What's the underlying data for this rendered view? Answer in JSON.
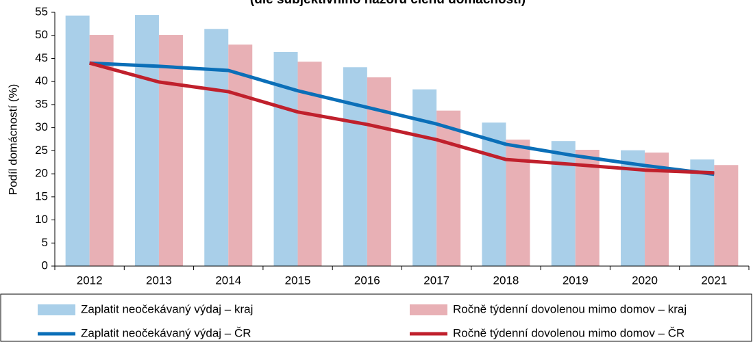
{
  "chart_data": {
    "type": "bar",
    "title": "(dle subjektivního názoru členů domácností)",
    "y_label": "Podíl domácností (%)",
    "categories": [
      "2012",
      "2013",
      "2014",
      "2015",
      "2016",
      "2017",
      "2018",
      "2019",
      "2020",
      "2021"
    ],
    "series": [
      {
        "name": "Zaplatit neočekávaný výdaj – kraj",
        "type": "bar",
        "color": "#a9cfe9",
        "values": [
          54.3,
          54.4,
          51.4,
          46.4,
          43.1,
          38.3,
          31.1,
          27.1,
          25.1,
          23.1
        ]
      },
      {
        "name": "Ročně týdenní dovolenou mimo domov – kraj",
        "type": "bar",
        "color": "#e8b0b5",
        "values": [
          50.1,
          50.1,
          48.0,
          44.3,
          40.9,
          33.7,
          27.4,
          25.2,
          24.6,
          21.9
        ]
      },
      {
        "name": "Zaplatit neočekávaný výdaj – ČR",
        "type": "line",
        "color": "#0b6fb8",
        "values": [
          44.0,
          43.3,
          42.4,
          38.0,
          34.4,
          30.8,
          26.4,
          23.9,
          21.8,
          19.9
        ]
      },
      {
        "name": "Ročně týdenní dovolenou mimo domov – ČR",
        "type": "line",
        "color": "#c0202c",
        "values": [
          44.0,
          39.9,
          37.8,
          33.4,
          30.7,
          27.4,
          23.1,
          22.0,
          20.8,
          20.2
        ]
      }
    ],
    "ylim": [
      0,
      55
    ],
    "yticks": [
      0,
      5,
      10,
      15,
      20,
      25,
      30,
      35,
      40,
      45,
      50,
      55
    ],
    "grid": false,
    "legend": "bottom"
  }
}
